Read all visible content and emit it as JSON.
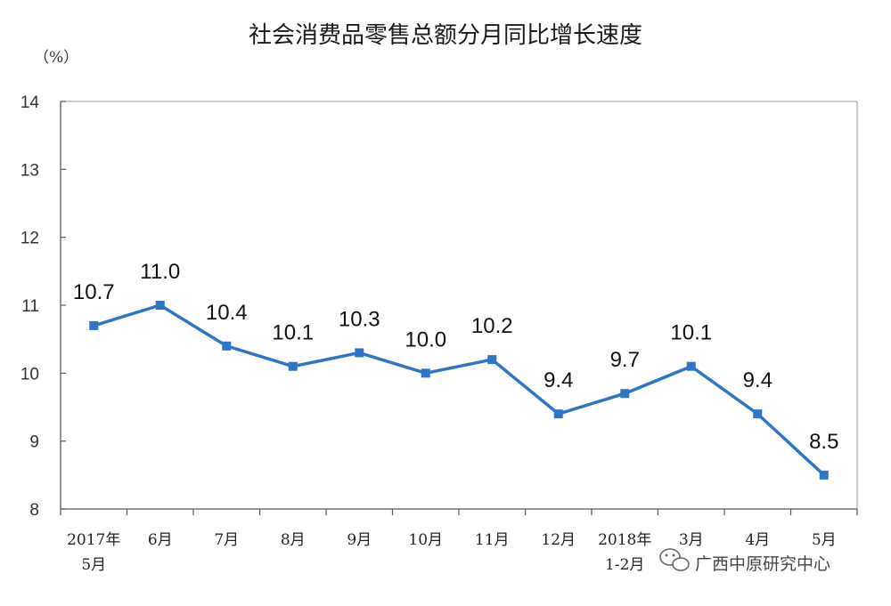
{
  "chart_data": {
    "type": "line",
    "title": "社会消费品零售总额分月同比增长速度",
    "ylabel": "（%）",
    "ylim": [
      8,
      14
    ],
    "yticks": [
      "8",
      "9",
      "10",
      "11",
      "12",
      "13",
      "14"
    ],
    "categories": [
      [
        "2017年",
        "5月"
      ],
      [
        "6月"
      ],
      [
        "7月"
      ],
      [
        "8月"
      ],
      [
        "9月"
      ],
      [
        "10月"
      ],
      [
        "11月"
      ],
      [
        "12月"
      ],
      [
        "2018年",
        "1-2月"
      ],
      [
        "3月"
      ],
      [
        "4月"
      ],
      [
        "5月"
      ]
    ],
    "values": [
      10.7,
      11.0,
      10.4,
      10.1,
      10.3,
      10.0,
      10.2,
      9.4,
      9.7,
      10.1,
      9.4,
      8.5
    ],
    "data_labels": [
      "10.7",
      "11.0",
      "10.4",
      "10.1",
      "10.3",
      "10.0",
      "10.2",
      "9.4",
      "9.7",
      "10.1",
      "9.4",
      "8.5"
    ],
    "line_color": "#2e75c8",
    "marker_color": "#2e75c8",
    "grid": false,
    "legend": "none"
  },
  "watermark": {
    "text": "广西中原研究中心",
    "icon": "wechat-icon"
  }
}
